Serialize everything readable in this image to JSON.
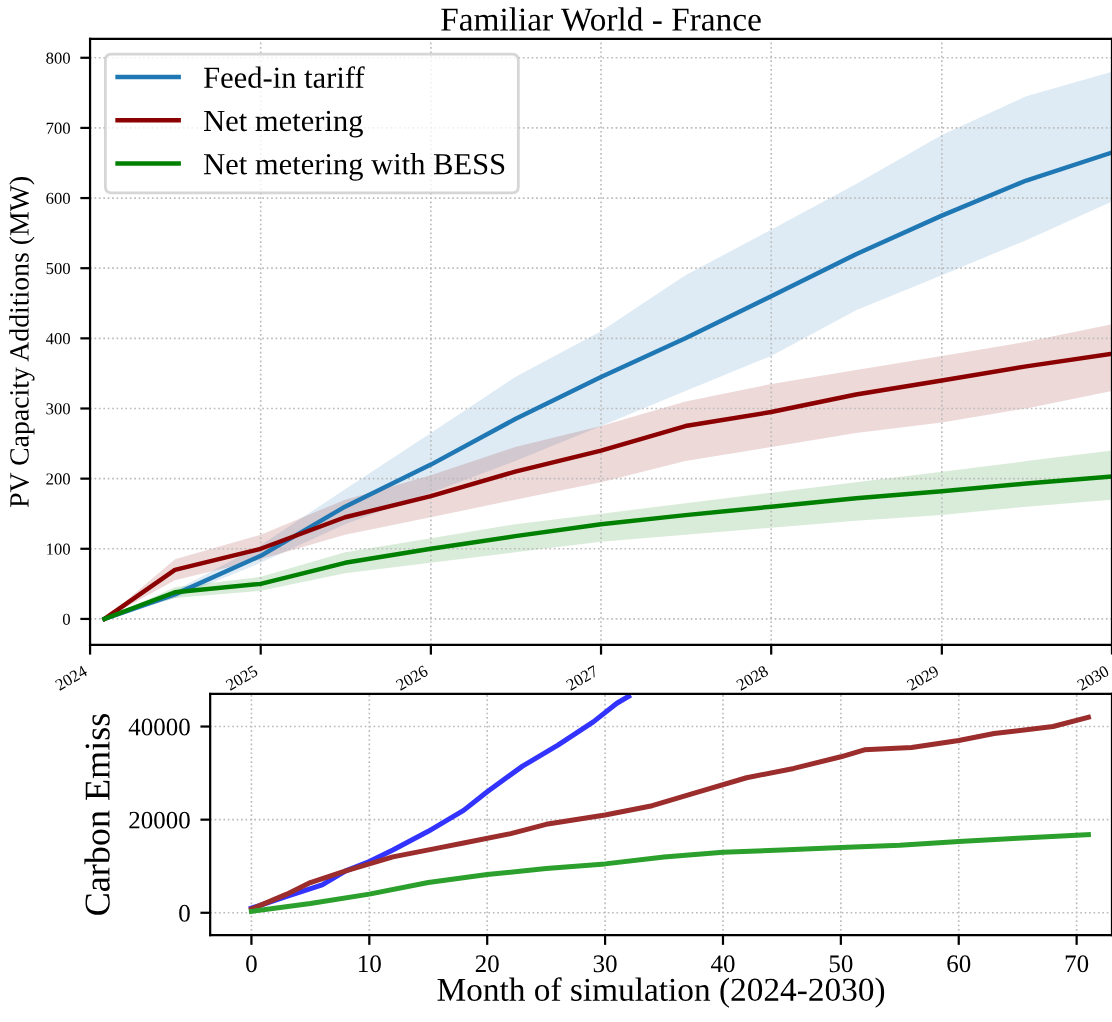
{
  "chart_data": [
    {
      "type": "line",
      "title": "Familiar World - France",
      "ylabel": "PV Capacity Additions (MW)",
      "x": [
        "2024-02",
        "2024-07",
        "2025-01",
        "2025-07",
        "2026-01",
        "2026-07",
        "2027-01",
        "2027-07",
        "2028-01",
        "2028-07",
        "2029-01",
        "2029-07",
        "2030-01"
      ],
      "series": [
        {
          "name": "Feed-in tariff",
          "color": "#1f77b4",
          "values": [
            0,
            35,
            90,
            160,
            220,
            285,
            345,
            400,
            460,
            520,
            575,
            625,
            665
          ],
          "lower": [
            0,
            30,
            80,
            135,
            180,
            225,
            275,
            325,
            375,
            440,
            490,
            540,
            595
          ],
          "upper": [
            0,
            40,
            105,
            185,
            265,
            345,
            410,
            490,
            555,
            620,
            690,
            745,
            780
          ]
        },
        {
          "name": "Net metering",
          "color": "#8b0000",
          "values": [
            0,
            70,
            100,
            145,
            175,
            210,
            240,
            275,
            295,
            320,
            340,
            360,
            378
          ],
          "lower": [
            0,
            55,
            85,
            120,
            145,
            170,
            195,
            225,
            245,
            265,
            280,
            300,
            325
          ],
          "upper": [
            0,
            85,
            120,
            170,
            205,
            245,
            275,
            310,
            335,
            355,
            375,
            395,
            420
          ]
        },
        {
          "name": "Net metering with BESS",
          "color": "#008000",
          "values": [
            0,
            38,
            50,
            80,
            100,
            118,
            135,
            148,
            160,
            172,
            182,
            193,
            203
          ],
          "lower": [
            0,
            30,
            40,
            65,
            80,
            95,
            110,
            120,
            130,
            140,
            148,
            160,
            170
          ],
          "upper": [
            0,
            45,
            60,
            95,
            115,
            135,
            150,
            165,
            180,
            195,
            210,
            225,
            240
          ]
        }
      ],
      "xlim": [
        "2024-01-01",
        "2030-01-01"
      ],
      "xticks": [
        "2024",
        "2025",
        "2026",
        "2027",
        "2028",
        "2029",
        "2030"
      ],
      "ylim": [
        -37,
        827
      ],
      "yticks": [
        0,
        100,
        200,
        300,
        400,
        500,
        600,
        700,
        800
      ],
      "grid": true,
      "legend": "top left"
    },
    {
      "type": "line",
      "xlabel": "Month of simulation (2024-2030)",
      "ylabel": "Carbon Emiss",
      "series": [
        {
          "color": "#3333ff",
          "x": [
            0,
            3,
            6,
            8,
            10,
            12,
            15,
            18,
            20,
            23,
            26,
            29,
            31,
            32
          ],
          "values": [
            1000,
            3500,
            6000,
            9000,
            11000,
            13500,
            17500,
            22000,
            26000,
            31500,
            36000,
            41000,
            45000,
            46500
          ]
        },
        {
          "color": "#9b2d2d",
          "x": [
            0,
            3,
            5,
            8,
            12,
            16,
            18,
            22,
            25,
            30,
            34,
            38,
            42,
            46,
            50,
            52,
            56,
            60,
            63,
            68,
            71
          ],
          "values": [
            800,
            4000,
            6500,
            9000,
            12000,
            14000,
            15000,
            17000,
            19000,
            21000,
            23000,
            26000,
            29000,
            31000,
            33500,
            35000,
            35500,
            37000,
            38500,
            40000,
            42000
          ]
        },
        {
          "color": "#2ca02c",
          "x": [
            0,
            5,
            10,
            15,
            20,
            25,
            30,
            35,
            40,
            45,
            50,
            55,
            60,
            65,
            71
          ],
          "values": [
            300,
            2000,
            4000,
            6500,
            8200,
            9500,
            10500,
            12000,
            13000,
            13500,
            14000,
            14500,
            15300,
            16000,
            16800
          ]
        }
      ],
      "xlim": [
        -3.5,
        73
      ],
      "xticks": [
        0,
        10,
        20,
        30,
        40,
        50,
        60,
        70
      ],
      "ylim": [
        -4800,
        47000
      ],
      "yticks": [
        0,
        20000,
        40000
      ],
      "grid": true
    }
  ]
}
